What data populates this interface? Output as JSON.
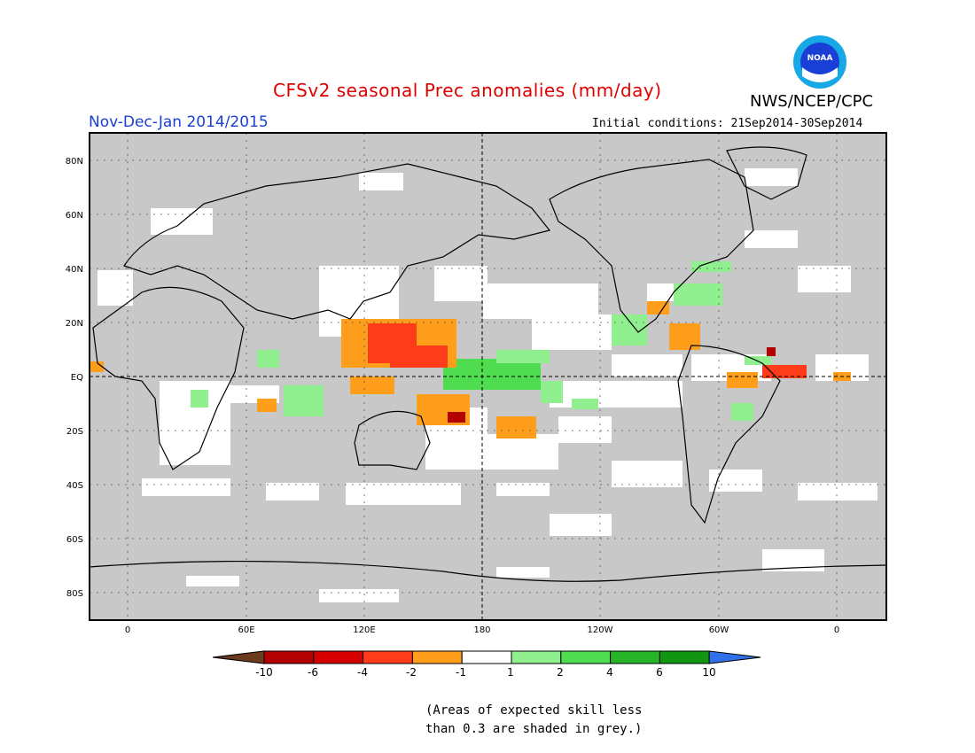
{
  "header": {
    "title": "CFSv2 seasonal Prec anomalies (mm/day)",
    "period": "Nov-Dec-Jan 2014/2015",
    "agency": "NWS/NCEP/CPC",
    "initial_conditions": "Initial conditions: 21Sep2014-30Sep2014",
    "logo_text": "NOAA"
  },
  "map": {
    "lat_labels": [
      "80N",
      "60N",
      "40N",
      "20N",
      "EQ",
      "20S",
      "40S",
      "60S",
      "80S"
    ],
    "lon_labels": [
      "0",
      "60E",
      "120E",
      "180",
      "120W",
      "60W",
      "0"
    ],
    "background_color": "#c8c8c8"
  },
  "colorbar": {
    "labels": [
      "-10",
      "-6",
      "-4",
      "-2",
      "-1",
      "1",
      "2",
      "4",
      "6",
      "10"
    ],
    "colors": [
      "#6b3a1f",
      "#b40000",
      "#d60000",
      "#ff3c1a",
      "#ff9e1a",
      "#ffffff",
      "#90f090",
      "#50dc50",
      "#28b428",
      "#109610",
      "#3070e8"
    ]
  },
  "note": {
    "line1": "(Areas of expected skill less",
    "line2": "than 0.3 are shaded in grey.)"
  }
}
